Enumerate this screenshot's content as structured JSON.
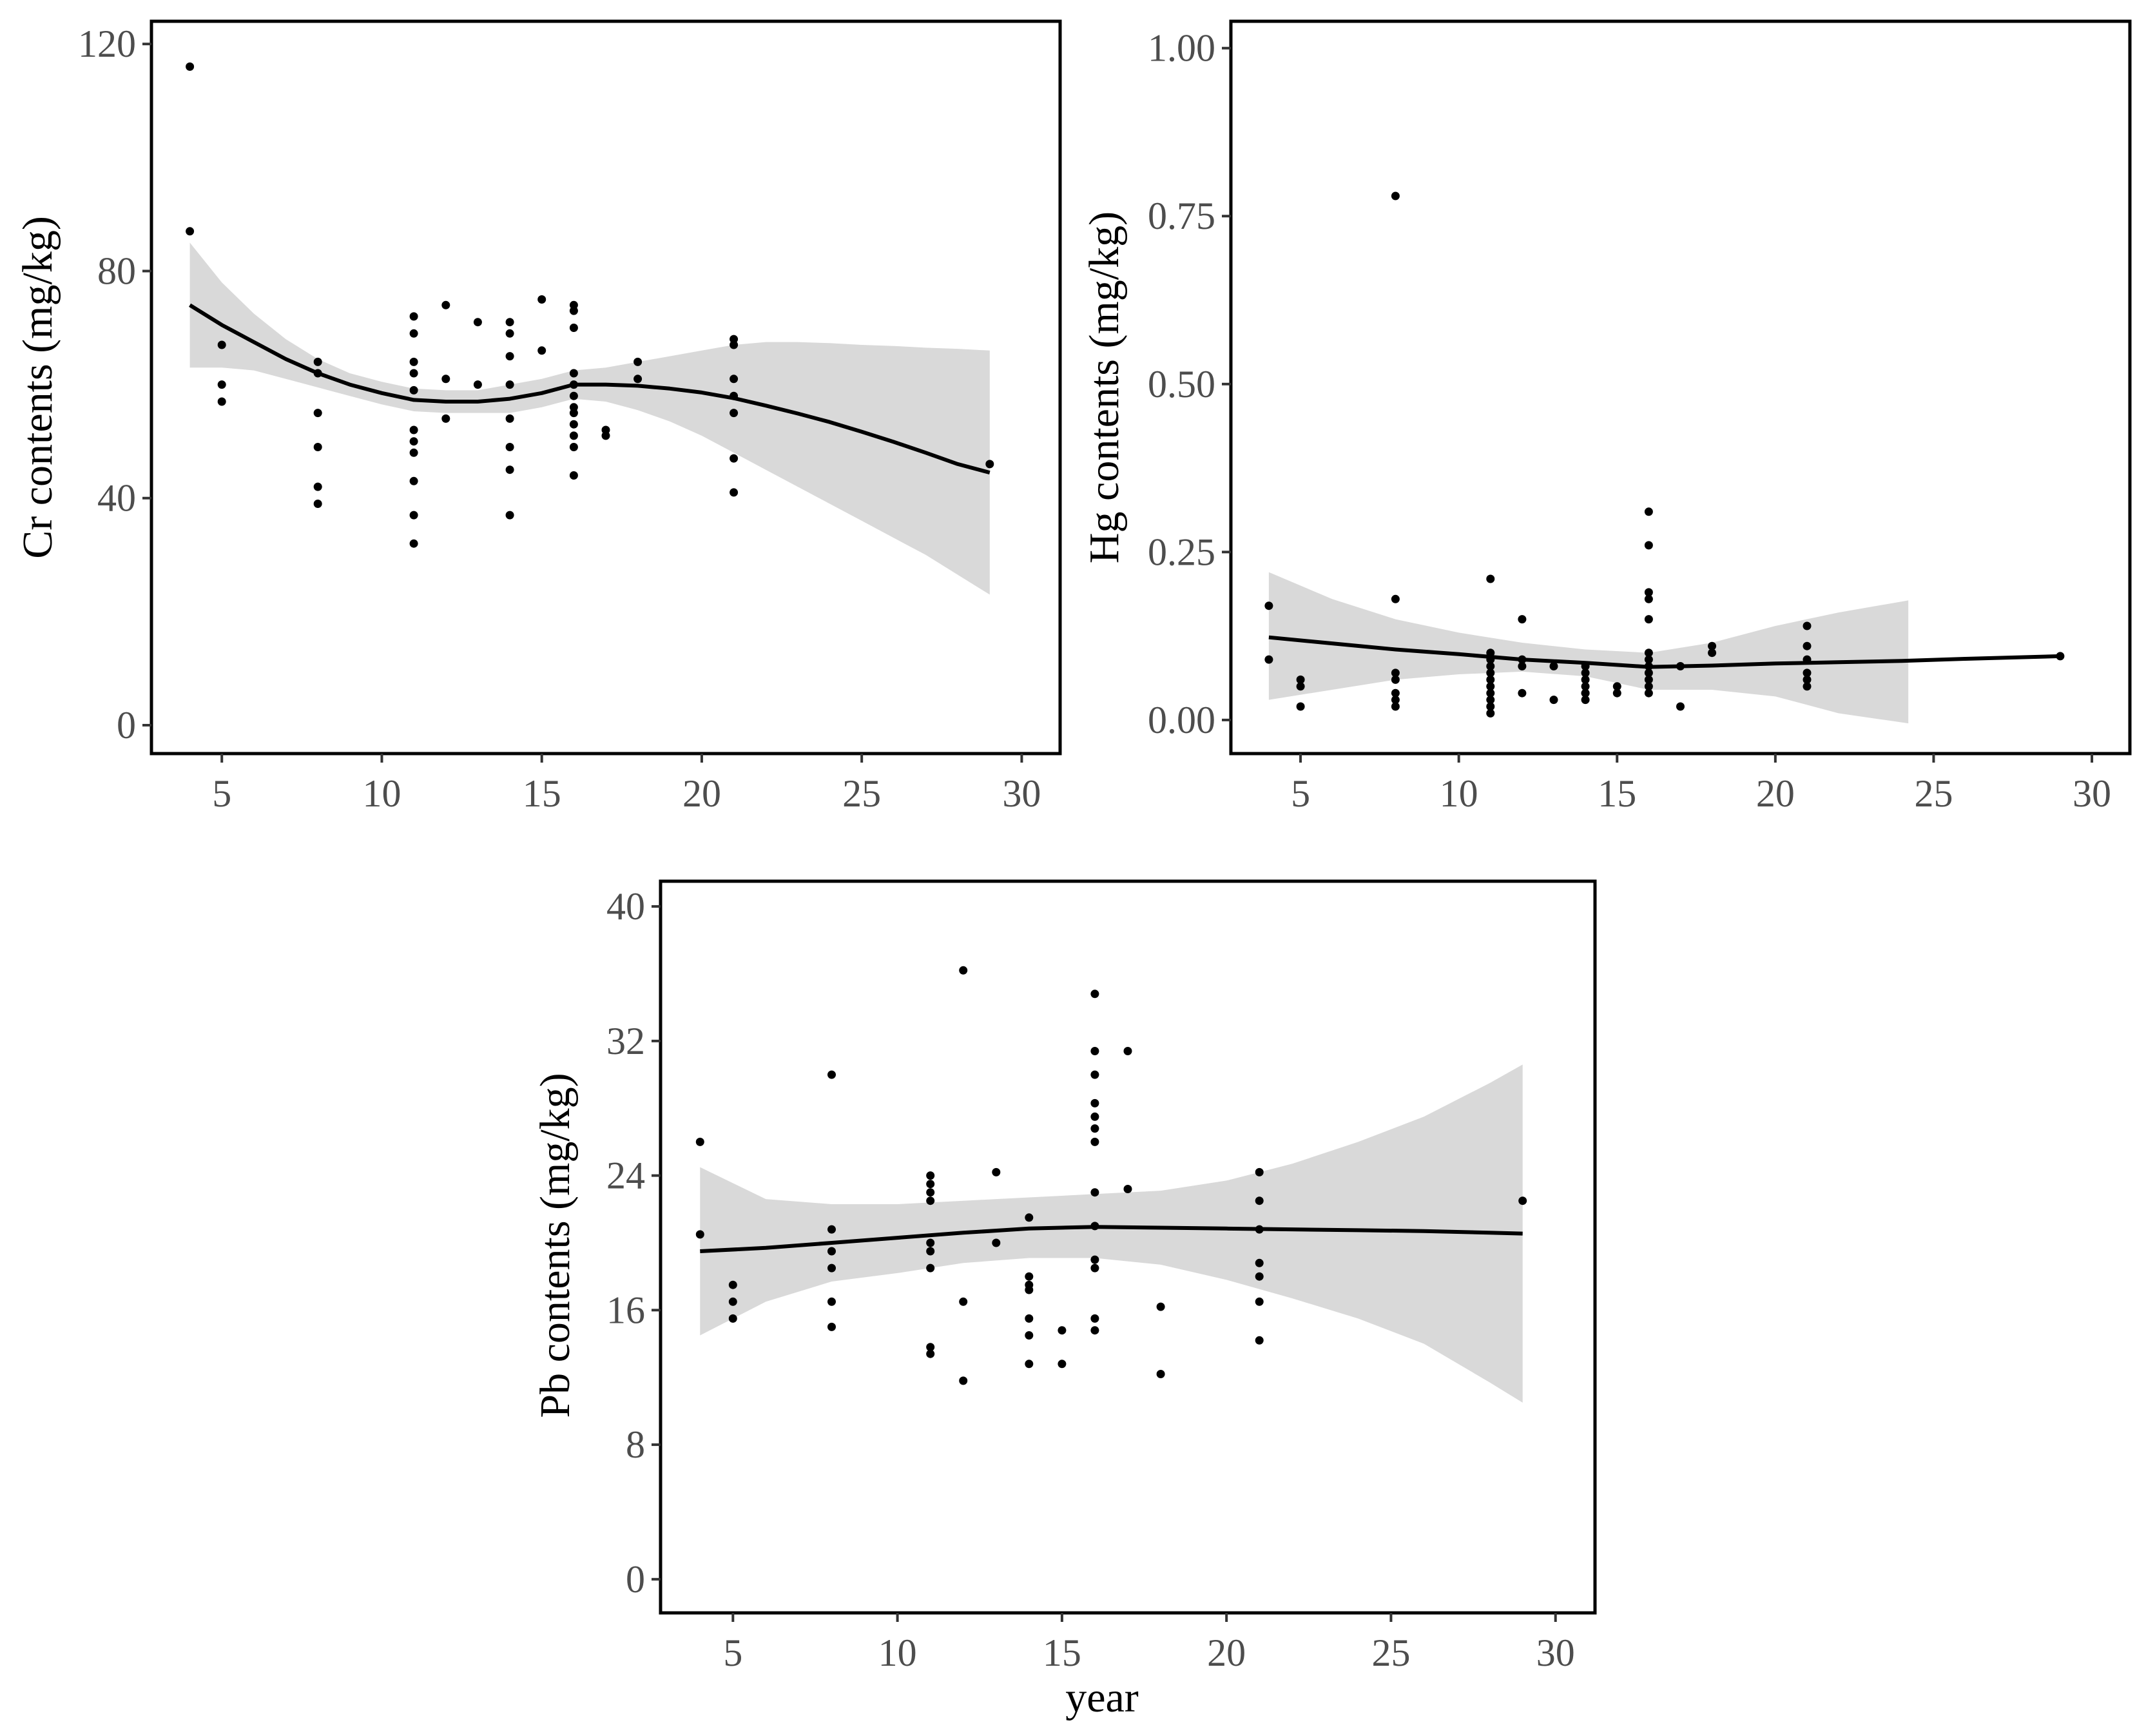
{
  "colors": {
    "points": "#000000",
    "smooth_line": "#000000",
    "ribbon": "#d9d9d9",
    "tick_text": "#4d4d4d",
    "panel_border": "#000000"
  },
  "chart_data": [
    {
      "id": "cr",
      "type": "scatter",
      "smooth": true,
      "title": "",
      "xlabel": "",
      "ylabel": "Cr contents (mg/kg)",
      "xlim": [
        2.8,
        31.2
      ],
      "ylim": [
        -5,
        124
      ],
      "xticks": [
        5,
        10,
        15,
        20,
        25,
        30
      ],
      "yticks": [
        0,
        40,
        80,
        120
      ],
      "points": [
        [
          4,
          116
        ],
        [
          4,
          87
        ],
        [
          5,
          67
        ],
        [
          5,
          60
        ],
        [
          5,
          57
        ],
        [
          8,
          64
        ],
        [
          8,
          62
        ],
        [
          8,
          55
        ],
        [
          8,
          49
        ],
        [
          8,
          42
        ],
        [
          8,
          39
        ],
        [
          11,
          72
        ],
        [
          11,
          69
        ],
        [
          11,
          64
        ],
        [
          11,
          62
        ],
        [
          11,
          59
        ],
        [
          11,
          52
        ],
        [
          11,
          50
        ],
        [
          11,
          48
        ],
        [
          11,
          43
        ],
        [
          11,
          37
        ],
        [
          11,
          32
        ],
        [
          12,
          74
        ],
        [
          12,
          61
        ],
        [
          12,
          54
        ],
        [
          13,
          71
        ],
        [
          13,
          60
        ],
        [
          14,
          71
        ],
        [
          14,
          69
        ],
        [
          14,
          65
        ],
        [
          14,
          60
        ],
        [
          14,
          54
        ],
        [
          14,
          49
        ],
        [
          14,
          45
        ],
        [
          14,
          37
        ],
        [
          15,
          75
        ],
        [
          15,
          66
        ],
        [
          16,
          74
        ],
        [
          16,
          73
        ],
        [
          16,
          70
        ],
        [
          16,
          62
        ],
        [
          16,
          60
        ],
        [
          16,
          58
        ],
        [
          16,
          56
        ],
        [
          16,
          55
        ],
        [
          16,
          53
        ],
        [
          16,
          51
        ],
        [
          16,
          49
        ],
        [
          16,
          44
        ],
        [
          17,
          52
        ],
        [
          17,
          51
        ],
        [
          18,
          64
        ],
        [
          18,
          61
        ],
        [
          21,
          68
        ],
        [
          21,
          67
        ],
        [
          21,
          61
        ],
        [
          21,
          58
        ],
        [
          21,
          55
        ],
        [
          21,
          47
        ],
        [
          21,
          41
        ],
        [
          29,
          46
        ]
      ],
      "smooth_x": [
        4,
        5,
        6,
        7,
        8,
        9,
        10,
        11,
        12,
        13,
        14,
        15,
        16,
        17,
        18,
        19,
        20,
        21,
        22,
        23,
        24,
        25,
        26,
        27,
        28,
        29
      ],
      "smooth_y": [
        74,
        70.5,
        67.5,
        64.5,
        62,
        60,
        58.5,
        57.3,
        57,
        57,
        57.5,
        58.5,
        60,
        60,
        59.8,
        59.3,
        58.6,
        57.6,
        56.3,
        54.9,
        53.4,
        51.7,
        49.9,
        48,
        46,
        44.5
      ],
      "ribbon_lower": [
        63,
        63,
        62.5,
        61,
        59.5,
        58,
        56.5,
        55.3,
        55,
        55,
        55,
        56,
        57.5,
        57,
        55.5,
        53.5,
        51,
        48,
        45,
        42,
        39,
        36,
        33,
        30,
        26.5,
        23
      ],
      "ribbon_upper": [
        85,
        78,
        72.5,
        68,
        64.5,
        62,
        60.5,
        59.3,
        59,
        59,
        60,
        61,
        62.5,
        63,
        64,
        65,
        66,
        67,
        67.5,
        67.5,
        67.3,
        67,
        66.8,
        66.5,
        66.3,
        66
      ]
    },
    {
      "id": "hg",
      "type": "scatter",
      "smooth": true,
      "title": "",
      "xlabel": "",
      "ylabel": "Hg contents (mg/kg)",
      "xlim": [
        2.8,
        31.2
      ],
      "ylim": [
        -0.05,
        1.04
      ],
      "xticks": [
        5,
        10,
        15,
        20,
        25,
        30
      ],
      "yticks": [
        0.0,
        0.25,
        0.5,
        0.75,
        1.0
      ],
      "yticklabels": [
        "0.00",
        "0.25",
        "0.50",
        "0.75",
        "1.00"
      ],
      "points": [
        [
          4,
          0.17
        ],
        [
          4,
          0.09
        ],
        [
          5,
          0.06
        ],
        [
          5,
          0.05
        ],
        [
          5,
          0.02
        ],
        [
          8,
          0.78
        ],
        [
          8,
          0.18
        ],
        [
          8,
          0.07
        ],
        [
          8,
          0.06
        ],
        [
          8,
          0.04
        ],
        [
          8,
          0.03
        ],
        [
          8,
          0.02
        ],
        [
          11,
          0.21
        ],
        [
          11,
          0.1
        ],
        [
          11,
          0.09
        ],
        [
          11,
          0.08
        ],
        [
          11,
          0.07
        ],
        [
          11,
          0.06
        ],
        [
          11,
          0.05
        ],
        [
          11,
          0.04
        ],
        [
          11,
          0.03
        ],
        [
          11,
          0.02
        ],
        [
          11,
          0.01
        ],
        [
          12,
          0.15
        ],
        [
          12,
          0.09
        ],
        [
          12,
          0.08
        ],
        [
          12,
          0.04
        ],
        [
          13,
          0.08
        ],
        [
          13,
          0.03
        ],
        [
          14,
          0.08
        ],
        [
          14,
          0.07
        ],
        [
          14,
          0.06
        ],
        [
          14,
          0.05
        ],
        [
          14,
          0.04
        ],
        [
          14,
          0.04
        ],
        [
          14,
          0.03
        ],
        [
          15,
          0.05
        ],
        [
          15,
          0.04
        ],
        [
          16,
          0.31
        ],
        [
          16,
          0.26
        ],
        [
          16,
          0.19
        ],
        [
          16,
          0.18
        ],
        [
          16,
          0.15
        ],
        [
          16,
          0.1
        ],
        [
          16,
          0.09
        ],
        [
          16,
          0.08
        ],
        [
          16,
          0.07
        ],
        [
          16,
          0.06
        ],
        [
          16,
          0.05
        ],
        [
          16,
          0.04
        ],
        [
          17,
          0.08
        ],
        [
          17,
          0.02
        ],
        [
          18,
          0.11
        ],
        [
          18,
          0.1
        ],
        [
          21,
          0.14
        ],
        [
          21,
          0.11
        ],
        [
          21,
          0.09
        ],
        [
          21,
          0.07
        ],
        [
          21,
          0.06
        ],
        [
          21,
          0.05
        ],
        [
          29,
          0.095
        ]
      ],
      "smooth_x": [
        4,
        6,
        8,
        10,
        12,
        14,
        16,
        18,
        20,
        22,
        24,
        26,
        29
      ],
      "smooth_y": [
        0.123,
        0.114,
        0.105,
        0.098,
        0.09,
        0.085,
        0.079,
        0.081,
        0.084,
        0.086,
        0.088,
        0.091,
        0.095
      ],
      "smooth_end": 29,
      "ribbon_x": [
        4,
        6,
        8,
        10,
        12,
        14,
        16,
        18,
        20,
        22,
        24.2
      ],
      "ribbon_lower": [
        0.03,
        0.045,
        0.06,
        0.068,
        0.072,
        0.065,
        0.045,
        0.045,
        0.035,
        0.01,
        -0.005
      ],
      "ribbon_upper": [
        0.22,
        0.18,
        0.15,
        0.13,
        0.115,
        0.105,
        0.1,
        0.115,
        0.14,
        0.16,
        0.178
      ]
    },
    {
      "id": "pb",
      "type": "scatter",
      "smooth": true,
      "title": "",
      "xlabel": "year",
      "ylabel": "Pb contents (mg/kg)",
      "xlim": [
        2.8,
        31.2
      ],
      "ylim": [
        -2,
        41.5
      ],
      "xticks": [
        5,
        10,
        15,
        20,
        25,
        30
      ],
      "yticks": [
        0,
        8,
        16,
        24,
        32,
        40
      ],
      "points": [
        [
          4,
          26
        ],
        [
          4,
          20.5
        ],
        [
          5,
          17.5
        ],
        [
          5,
          16.5
        ],
        [
          5,
          15.5
        ],
        [
          8,
          30
        ],
        [
          8,
          20.8
        ],
        [
          8,
          19.5
        ],
        [
          8,
          18.5
        ],
        [
          8,
          16.5
        ],
        [
          8,
          15
        ],
        [
          11,
          24
        ],
        [
          11,
          23.5
        ],
        [
          11,
          23
        ],
        [
          11,
          22.5
        ],
        [
          11,
          20
        ],
        [
          11,
          19.5
        ],
        [
          11,
          18.5
        ],
        [
          11,
          13.8
        ],
        [
          11,
          13.4
        ],
        [
          12,
          36.2
        ],
        [
          12,
          16.5
        ],
        [
          12,
          11.8
        ],
        [
          13,
          24.2
        ],
        [
          13,
          20
        ],
        [
          14,
          21.5
        ],
        [
          14,
          18
        ],
        [
          14,
          17.5
        ],
        [
          14,
          17.2
        ],
        [
          14,
          15.5
        ],
        [
          14,
          14.5
        ],
        [
          14,
          12.8
        ],
        [
          15,
          14.8
        ],
        [
          15,
          12.8
        ],
        [
          16,
          34.8
        ],
        [
          16,
          31.4
        ],
        [
          16,
          30
        ],
        [
          16,
          28.3
        ],
        [
          16,
          27.5
        ],
        [
          16,
          26.8
        ],
        [
          16,
          26
        ],
        [
          16,
          23
        ],
        [
          16,
          21
        ],
        [
          16,
          19
        ],
        [
          16,
          18.5
        ],
        [
          16,
          15.5
        ],
        [
          16,
          14.8
        ],
        [
          17,
          31.4
        ],
        [
          17,
          23.2
        ],
        [
          18,
          16.2
        ],
        [
          18,
          12.2
        ],
        [
          21,
          24.2
        ],
        [
          21,
          22.5
        ],
        [
          21,
          20.8
        ],
        [
          21,
          18.8
        ],
        [
          21,
          18
        ],
        [
          21,
          16.5
        ],
        [
          21,
          14.2
        ],
        [
          29,
          22.5
        ]
      ],
      "smooth_x": [
        4,
        6,
        8,
        10,
        12,
        14,
        16,
        18,
        20,
        22,
        24,
        26,
        28,
        29
      ],
      "smooth_y": [
        19.5,
        19.7,
        20.0,
        20.3,
        20.6,
        20.85,
        20.95,
        20.9,
        20.85,
        20.8,
        20.75,
        20.7,
        20.6,
        20.55
      ],
      "ribbon_lower": [
        14.5,
        16.5,
        17.7,
        18.2,
        18.8,
        19.1,
        19.1,
        18.7,
        17.8,
        16.7,
        15.5,
        14.0,
        11.7,
        10.5
      ],
      "ribbon_upper": [
        24.5,
        22.6,
        22.3,
        22.3,
        22.5,
        22.7,
        22.9,
        23.1,
        23.7,
        24.7,
        26.0,
        27.5,
        29.5,
        30.6
      ]
    }
  ]
}
